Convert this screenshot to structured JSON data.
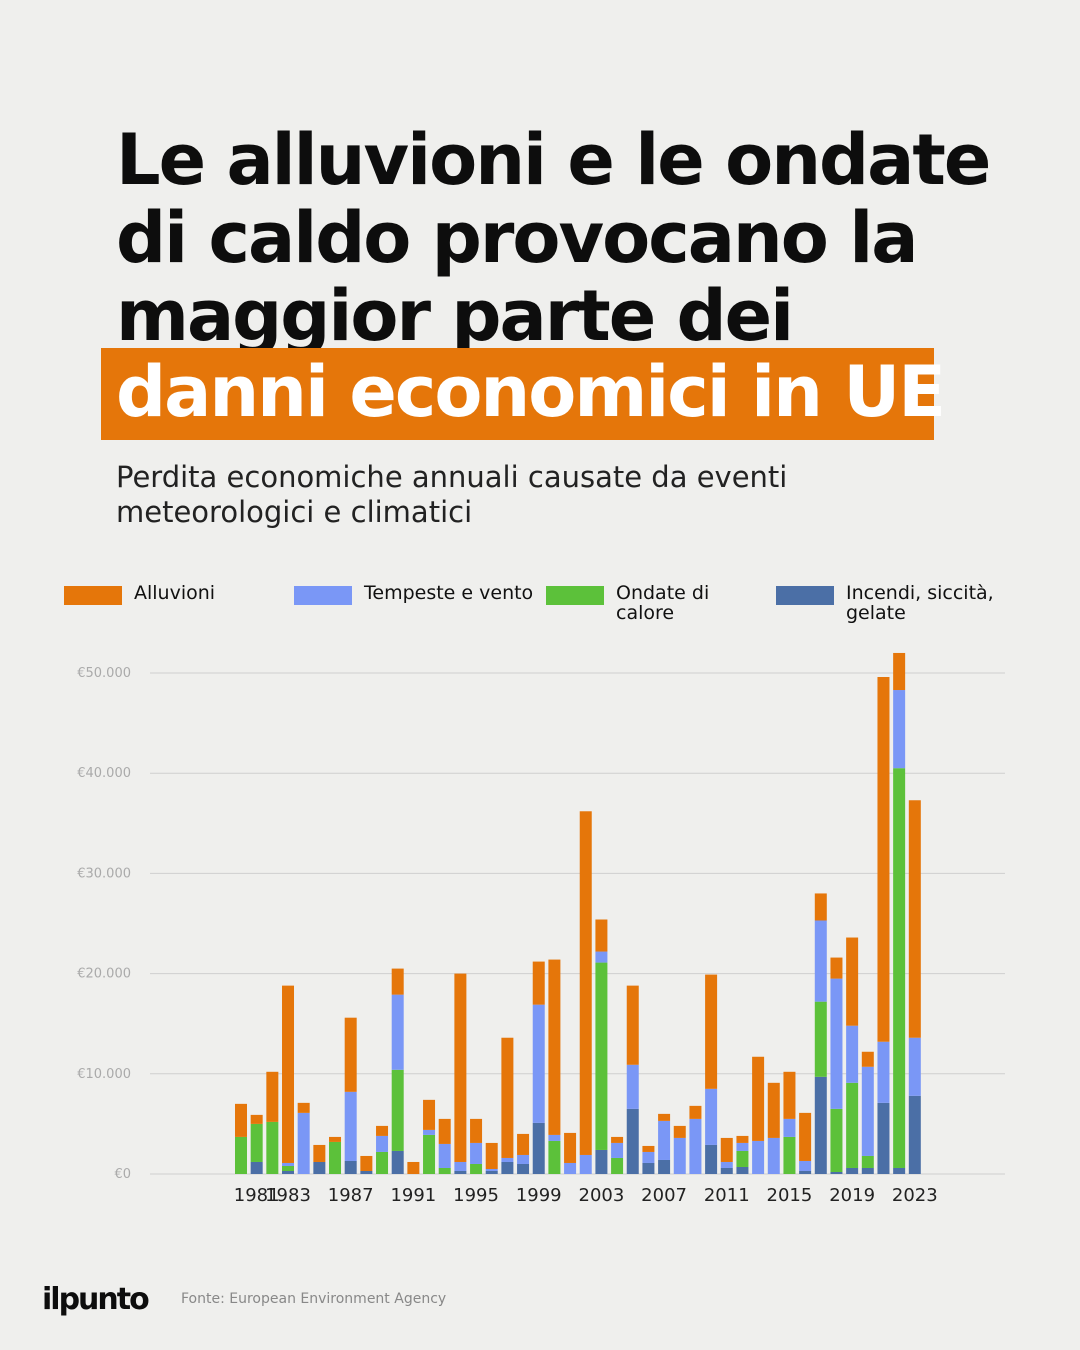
{
  "header": {
    "title_lines": [
      "Le alluvioni e le ondate",
      "di caldo provocano la",
      "maggior parte dei"
    ],
    "highlight": "danni economici in UE",
    "subtitle_lines": [
      "Perdita economiche annuali causate da eventi",
      "meteorologici e climatici"
    ]
  },
  "chart_data": {
    "type": "stacked_bar",
    "categories": [
      null,
      "1981",
      null,
      "1983",
      null,
      null,
      null,
      "1987",
      null,
      null,
      null,
      "1991",
      null,
      null,
      null,
      "1995",
      null,
      null,
      null,
      "1999",
      null,
      null,
      null,
      "2003",
      null,
      null,
      null,
      "2007",
      null,
      null,
      null,
      "2011",
      null,
      null,
      null,
      "2015",
      null,
      null,
      null,
      "2019",
      null,
      null,
      null,
      "2023"
    ],
    "series": [
      {
        "name": "Incendi, siccità, gelate",
        "color": "#4b6fa6",
        "values": [
          0,
          1200,
          0,
          300,
          0,
          1200,
          0,
          1300,
          300,
          0,
          2300,
          0,
          0,
          0,
          300,
          0,
          300,
          1200,
          1000,
          5100,
          0,
          0,
          0,
          2400,
          0,
          6500,
          1100,
          1400,
          0,
          0,
          2900,
          600,
          700,
          0,
          0,
          0,
          300,
          9700,
          200,
          600,
          600,
          7100,
          600,
          7800
        ]
      },
      {
        "name": "Ondate di calore",
        "color": "#5cc13a",
        "values": [
          3700,
          3800,
          5200,
          500,
          0,
          0,
          3200,
          0,
          0,
          2200,
          8100,
          0,
          3900,
          600,
          0,
          1000,
          0,
          0,
          0,
          0,
          3300,
          0,
          0,
          18700,
          1600,
          0,
          0,
          0,
          0,
          0,
          0,
          0,
          1600,
          0,
          0,
          3700,
          0,
          7500,
          6300,
          8500,
          1200,
          0,
          39900,
          0
        ]
      },
      {
        "name": "Tempeste e vento",
        "color": "#7a97f6",
        "values": [
          0,
          0,
          0,
          300,
          6100,
          0,
          0,
          6900,
          0,
          1600,
          7500,
          0,
          500,
          2400,
          900,
          2100,
          200,
          400,
          900,
          11800,
          600,
          1100,
          1900,
          1100,
          1500,
          4400,
          1100,
          3900,
          3600,
          5500,
          5600,
          600,
          800,
          3300,
          3600,
          1800,
          1000,
          8100,
          13000,
          5700,
          8900,
          6100,
          7800,
          5800
        ]
      },
      {
        "name": "Alluvioni",
        "color": "#e5760a",
        "values": [
          3300,
          900,
          5000,
          17700,
          1000,
          1700,
          500,
          7400,
          1500,
          1000,
          2600,
          1200,
          3000,
          2500,
          18800,
          2400,
          2600,
          12000,
          2100,
          4300,
          17500,
          3000,
          34300,
          3200,
          600,
          7900,
          600,
          700,
          1200,
          1300,
          11400,
          2400,
          700,
          8400,
          5500,
          4700,
          4800,
          2700,
          2100,
          8800,
          1500,
          36400,
          3700,
          23700
        ]
      }
    ],
    "ylim": [
      0,
      50000
    ],
    "yticks": [
      {
        "value": 0,
        "label": "€0"
      },
      {
        "value": 10000,
        "label": "€10.000"
      },
      {
        "value": 20000,
        "label": "€20.000"
      },
      {
        "value": 30000,
        "label": "€30.000"
      },
      {
        "value": 40000,
        "label": "€40.000"
      },
      {
        "value": 50000,
        "label": "€50.000"
      }
    ],
    "grid": true
  },
  "footer": {
    "logo": "ilpunto",
    "source": "Fonte: European Environment Agency"
  }
}
